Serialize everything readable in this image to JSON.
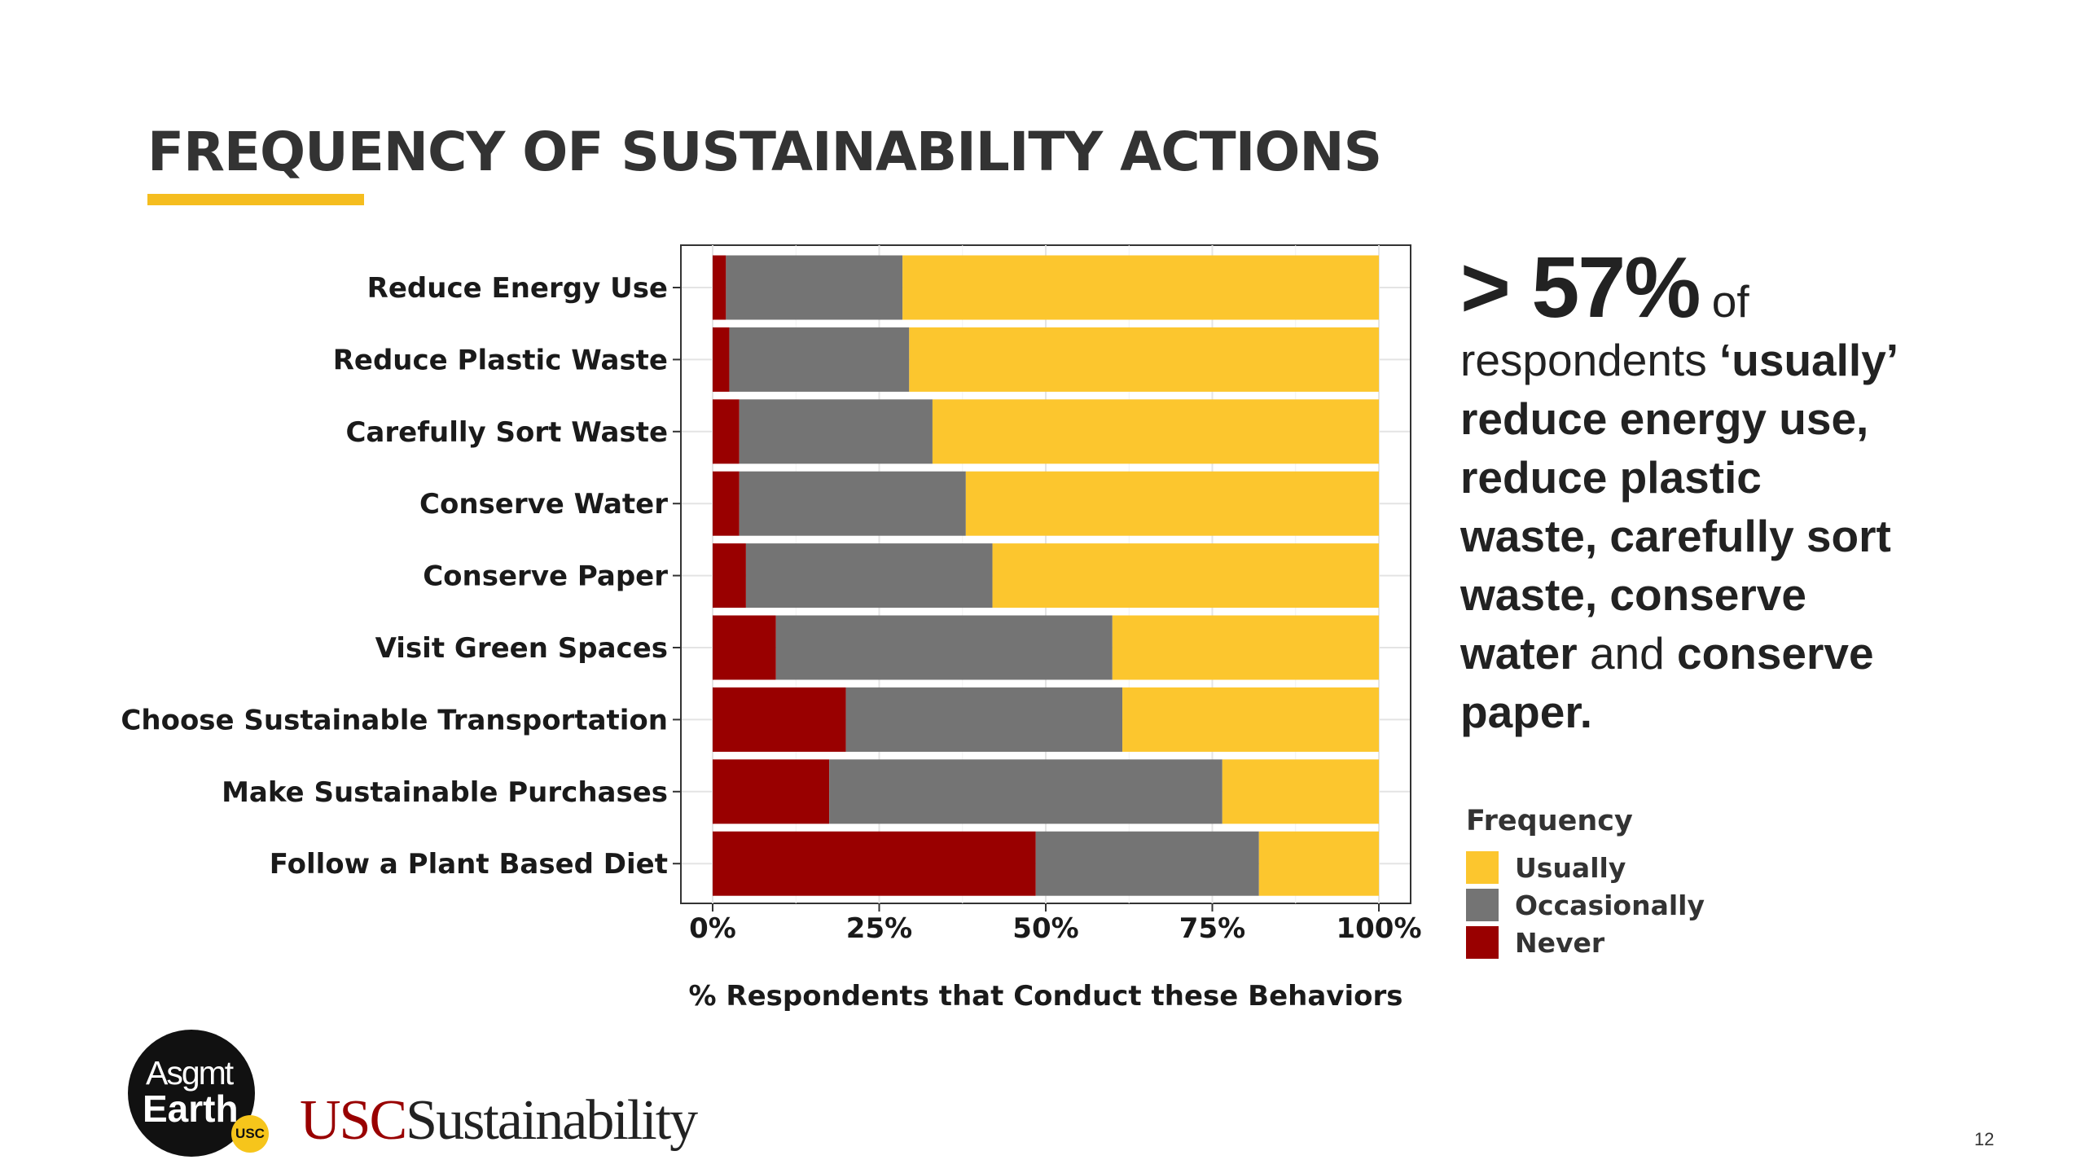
{
  "slide": {
    "title": "FREQUENCY OF SUSTAINABILITY ACTIONS",
    "accent_color": "#f5bd1f",
    "page_number": "12"
  },
  "callout": {
    "headline": "> 57%",
    "headline_suffix": "of",
    "line1": "respondents",
    "term_usually": "‘usually’",
    "items": [
      "reduce energy use,",
      "reduce plastic",
      "waste, carefully sort",
      "waste, conserve",
      "water",
      "and",
      "conserve",
      "paper."
    ]
  },
  "chart_data": {
    "type": "bar",
    "orientation": "horizontal",
    "stacked": true,
    "percent": true,
    "categories": [
      "Reduce Energy Use",
      "Reduce Plastic Waste",
      "Carefully Sort Waste",
      "Conserve Water",
      "Conserve Paper",
      "Visit Green Spaces",
      "Choose Sustainable Transportation",
      "Make Sustainable Purchases",
      "Follow a Plant Based Diet"
    ],
    "series": [
      {
        "name": "Never",
        "color": "#990000",
        "values": [
          2,
          2.5,
          4,
          4,
          5,
          9.5,
          20,
          17.5,
          48.5
        ]
      },
      {
        "name": "Occasionally",
        "color": "#747474",
        "values": [
          26.5,
          27,
          29,
          34,
          37,
          50.5,
          41.5,
          59,
          33.5
        ]
      },
      {
        "name": "Usually",
        "color": "#fcc62e",
        "values": [
          71.5,
          70.5,
          67,
          62,
          58,
          40,
          38.5,
          23.5,
          18
        ]
      }
    ],
    "xlim": [
      0,
      100
    ],
    "xticks": [
      "0%",
      "25%",
      "50%",
      "75%",
      "100%"
    ],
    "xlabel": "% Respondents that Conduct these Behaviors",
    "ylabel": "",
    "legend": {
      "title": "Frequency",
      "position": "right",
      "entries": [
        {
          "label": "Usually",
          "color": "#fcc62e"
        },
        {
          "label": "Occasionally",
          "color": "#747474"
        },
        {
          "label": "Never",
          "color": "#990000"
        }
      ]
    }
  },
  "logos": {
    "circle_line1": "Asgmt",
    "circle_line2": "Earth",
    "circle_badge": "USC",
    "wordmark_usc": "USC",
    "wordmark_rest": "Sustainability"
  }
}
